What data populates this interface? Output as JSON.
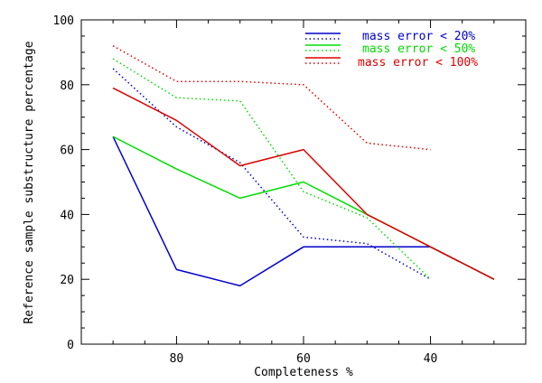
{
  "chart_data": {
    "type": "line",
    "xlabel": "Completeness %",
    "ylabel": "Reference sample substructure percentage",
    "xlim": [
      95,
      25
    ],
    "ylim": [
      0,
      100
    ],
    "x_reversed": true,
    "x_ticks": [
      80,
      60,
      40
    ],
    "y_ticks": [
      0,
      20,
      40,
      60,
      80,
      100
    ],
    "legend_position": "top-right",
    "series": [
      {
        "name": "mass error < 20%",
        "color": "#0000cc",
        "style": "solid",
        "x": [
          90,
          80,
          70,
          60,
          50,
          40,
          30
        ],
        "y": [
          64,
          23,
          18,
          30,
          30,
          30,
          20
        ]
      },
      {
        "name": "mass error < 20%",
        "color": "#0000cc",
        "style": "dotted",
        "x": [
          90,
          80,
          70,
          60,
          50,
          40
        ],
        "y": [
          85,
          67,
          56,
          33,
          31,
          20
        ]
      },
      {
        "name": "mass error < 50%",
        "color": "#00dd00",
        "style": "solid",
        "x": [
          90,
          80,
          70,
          60,
          50,
          40,
          30
        ],
        "y": [
          64,
          54,
          45,
          50,
          40,
          30,
          20
        ]
      },
      {
        "name": "mass error < 50%",
        "color": "#00dd00",
        "style": "dotted",
        "x": [
          90,
          80,
          70,
          60,
          50,
          40
        ],
        "y": [
          88,
          76,
          75,
          47,
          39,
          20
        ]
      },
      {
        "name": "mass error < 100%",
        "color": "#dd0000",
        "style": "solid",
        "x": [
          90,
          80,
          70,
          60,
          50,
          40,
          30
        ],
        "y": [
          79,
          69,
          55,
          60,
          40,
          30,
          20
        ]
      },
      {
        "name": "mass error < 100%",
        "color": "#dd0000",
        "style": "dotted",
        "x": [
          90,
          80,
          70,
          60,
          50,
          40
        ],
        "y": [
          92,
          81,
          81,
          80,
          62,
          60
        ]
      }
    ],
    "legend": [
      {
        "label": "mass error < 20%",
        "color": "#0000cc"
      },
      {
        "label": "mass error < 50%",
        "color": "#00dd00"
      },
      {
        "label": "mass error < 100%",
        "color": "#dd0000"
      }
    ]
  }
}
